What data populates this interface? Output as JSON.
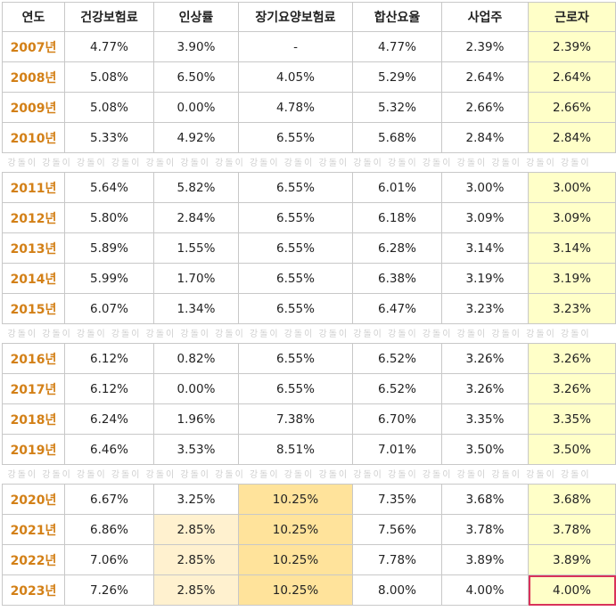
{
  "headers": [
    "연도",
    "건강보험료",
    "인상률",
    "장기요양보험료",
    "합산요율",
    "사업주",
    "근로자"
  ],
  "watermark": "강돌이",
  "groups": [
    [
      {
        "year": "2007년",
        "health": "4.77%",
        "rate": "3.90%",
        "ltc": "-",
        "total": "4.77%",
        "employer": "2.39%",
        "worker": "2.39%"
      },
      {
        "year": "2008년",
        "health": "5.08%",
        "rate": "6.50%",
        "ltc": "4.05%",
        "total": "5.29%",
        "employer": "2.64%",
        "worker": "2.64%"
      },
      {
        "year": "2009년",
        "health": "5.08%",
        "rate": "0.00%",
        "ltc": "4.78%",
        "total": "5.32%",
        "employer": "2.66%",
        "worker": "2.66%"
      },
      {
        "year": "2010년",
        "health": "5.33%",
        "rate": "4.92%",
        "ltc": "6.55%",
        "total": "5.68%",
        "employer": "2.84%",
        "worker": "2.84%"
      }
    ],
    [
      {
        "year": "2011년",
        "health": "5.64%",
        "rate": "5.82%",
        "ltc": "6.55%",
        "total": "6.01%",
        "employer": "3.00%",
        "worker": "3.00%"
      },
      {
        "year": "2012년",
        "health": "5.80%",
        "rate": "2.84%",
        "ltc": "6.55%",
        "total": "6.18%",
        "employer": "3.09%",
        "worker": "3.09%"
      },
      {
        "year": "2013년",
        "health": "5.89%",
        "rate": "1.55%",
        "ltc": "6.55%",
        "total": "6.28%",
        "employer": "3.14%",
        "worker": "3.14%"
      },
      {
        "year": "2014년",
        "health": "5.99%",
        "rate": "1.70%",
        "ltc": "6.55%",
        "total": "6.38%",
        "employer": "3.19%",
        "worker": "3.19%"
      },
      {
        "year": "2015년",
        "health": "6.07%",
        "rate": "1.34%",
        "ltc": "6.55%",
        "total": "6.47%",
        "employer": "3.23%",
        "worker": "3.23%"
      }
    ],
    [
      {
        "year": "2016년",
        "health": "6.12%",
        "rate": "0.82%",
        "ltc": "6.55%",
        "total": "6.52%",
        "employer": "3.26%",
        "worker": "3.26%"
      },
      {
        "year": "2017년",
        "health": "6.12%",
        "rate": "0.00%",
        "ltc": "6.55%",
        "total": "6.52%",
        "employer": "3.26%",
        "worker": "3.26%"
      },
      {
        "year": "2018년",
        "health": "6.24%",
        "rate": "1.96%",
        "ltc": "7.38%",
        "total": "6.70%",
        "employer": "3.35%",
        "worker": "3.35%"
      },
      {
        "year": "2019년",
        "health": "6.46%",
        "rate": "3.53%",
        "ltc": "8.51%",
        "total": "7.01%",
        "employer": "3.50%",
        "worker": "3.50%"
      }
    ],
    [
      {
        "year": "2020년",
        "health": "6.67%",
        "rate": "3.25%",
        "ltc": "10.25%",
        "total": "7.35%",
        "employer": "3.68%",
        "worker": "3.68%",
        "ltc_hl": true
      },
      {
        "year": "2021년",
        "health": "6.86%",
        "rate": "2.85%",
        "ltc": "10.25%",
        "total": "7.56%",
        "employer": "3.78%",
        "worker": "3.78%",
        "ltc_hl": true,
        "rate_hl": true
      },
      {
        "year": "2022년",
        "health": "7.06%",
        "rate": "2.85%",
        "ltc": "10.25%",
        "total": "7.78%",
        "employer": "3.89%",
        "worker": "3.89%",
        "ltc_hl": true,
        "rate_hl": true
      },
      {
        "year": "2023년",
        "health": "7.26%",
        "rate": "2.85%",
        "ltc": "10.25%",
        "total": "8.00%",
        "employer": "4.00%",
        "worker": "4.00%",
        "ltc_hl": true,
        "rate_hl": true,
        "worker_boxed": true
      }
    ]
  ],
  "colors": {
    "year_text": "#d38017",
    "worker_bg": "#ffffc8",
    "ltc_highlight": "#ffe39b",
    "rate_highlight": "#fff1cf",
    "box_border": "#d9325a"
  }
}
